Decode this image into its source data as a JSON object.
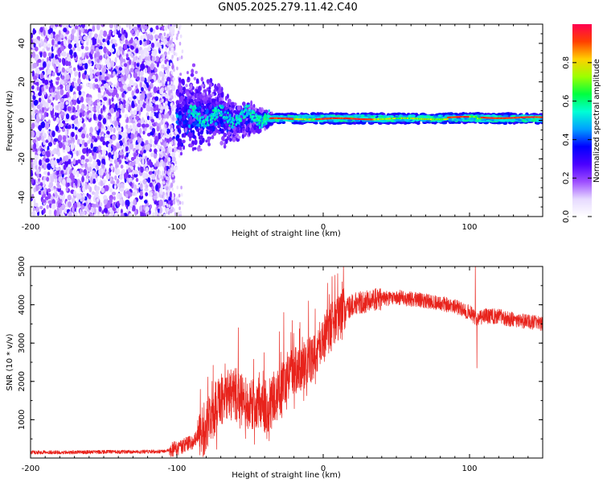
{
  "title": "GN05.2025.279.11.42.C40",
  "colors": {
    "background": "#ffffff",
    "snr_line": "#e8231c",
    "axis": "#000000"
  },
  "chart_data": [
    {
      "type": "heatmap",
      "title": "GN05.2025.279.11.42.C40",
      "xlabel": "Height of straight line (km)",
      "ylabel": "Frequency (Hz)",
      "xlim": [
        -200,
        150
      ],
      "ylim": [
        -50,
        50
      ],
      "xticks": [
        -200,
        -100,
        0,
        100
      ],
      "yticks": [
        -40,
        -20,
        0,
        20,
        40
      ],
      "colorbar": {
        "label": "Normalized spectral amplitude",
        "range": [
          0,
          1
        ],
        "ticks": [
          "0.0",
          "0.2",
          "0.4",
          "0.6",
          "0.8"
        ],
        "colormap": [
          "#ffffff",
          "#e6d9ff",
          "#9d4dff",
          "#4a00ff",
          "#0000ff",
          "#00a0ff",
          "#00ffd5",
          "#00ff40",
          "#9cff00",
          "#ffd000",
          "#ff4000",
          "#ff0050"
        ]
      },
      "description_points": {
        "noise_region_km": [
          -200,
          -100
        ],
        "transition_region_km": [
          -100,
          -40
        ],
        "signal_line_frequency_hz": 0.5,
        "signal_region_km": [
          -40,
          150
        ]
      }
    },
    {
      "type": "line",
      "title": "",
      "xlabel": "Height of straight line (km)",
      "ylabel": "SNR (10 * v/v)",
      "xlim": [
        -200,
        150
      ],
      "ylim": [
        0,
        5000
      ],
      "xticks": [
        -200,
        -100,
        0,
        100
      ],
      "yticks": [
        1000,
        2000,
        3000,
        4000,
        5000
      ],
      "series": [
        {
          "name": "SNR",
          "color": "#e8231c",
          "envelope": {
            "x": [
              -200,
              -170,
              -140,
              -110,
              -100,
              -90,
              -80,
              -70,
              -60,
              -55,
              -50,
              -45,
              -40,
              -35,
              -30,
              -25,
              -20,
              -15,
              -10,
              -5,
              0,
              10,
              20,
              30,
              40,
              50,
              60,
              70,
              80,
              90,
              100,
              105,
              110,
              120,
              130,
              140,
              150
            ],
            "y": [
              150,
              150,
              160,
              170,
              250,
              400,
              800,
              1500,
              1700,
              1500,
              1400,
              1400,
              1350,
              1400,
              1700,
              2100,
              2300,
              2400,
              2500,
              2700,
              3100,
              3700,
              4000,
              4100,
              4150,
              4200,
              4150,
              4100,
              4050,
              3950,
              3800,
              3600,
              3700,
              3700,
              3600,
              3550,
              3500
            ]
          },
          "spikes": [
            {
              "x": -58,
              "y": 3400
            },
            {
              "x": -30,
              "y": 3300
            },
            {
              "x": -27,
              "y": 3800
            },
            {
              "x": -10,
              "y": 4100
            },
            {
              "x": 13,
              "y": 4600
            },
            {
              "x": 104,
              "y": 5100
            },
            {
              "x": 105,
              "y": 2350
            }
          ]
        }
      ]
    }
  ]
}
